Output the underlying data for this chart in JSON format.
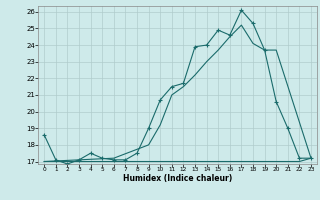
{
  "xlabel": "Humidex (Indice chaleur)",
  "bg_color": "#ceeaea",
  "grid_color": "#b0cccc",
  "line_color": "#1a6b6b",
  "xmin": 0,
  "xmax": 23,
  "ymin": 17,
  "ymax": 26,
  "line1_x": [
    0,
    1,
    2,
    3,
    4,
    5,
    6,
    7,
    8,
    9,
    10,
    11,
    12,
    13,
    14,
    15,
    16,
    17,
    18,
    19,
    20,
    21,
    22,
    23
  ],
  "line1_y": [
    18.6,
    17.1,
    16.85,
    17.1,
    17.5,
    17.2,
    17.1,
    17.1,
    17.5,
    19.0,
    20.7,
    21.5,
    21.7,
    23.9,
    24.0,
    24.9,
    24.6,
    26.1,
    25.3,
    23.7,
    20.6,
    19.0,
    17.2,
    17.2
  ],
  "line2_x": [
    0,
    1,
    2,
    3,
    4,
    5,
    6,
    7,
    8,
    9,
    10,
    11,
    12,
    13,
    14,
    15,
    16,
    17,
    18,
    19,
    20,
    21,
    22,
    23
  ],
  "line2_y": [
    17.0,
    17.0,
    17.0,
    17.0,
    17.0,
    17.0,
    17.0,
    17.0,
    17.0,
    17.0,
    17.0,
    17.0,
    17.0,
    17.0,
    17.0,
    17.0,
    17.0,
    17.0,
    17.0,
    17.0,
    17.0,
    17.0,
    17.0,
    17.2
  ],
  "line3_x": [
    0,
    3,
    6,
    9,
    10,
    11,
    12,
    13,
    14,
    15,
    16,
    17,
    18,
    19,
    20,
    23
  ],
  "line3_y": [
    17.0,
    17.1,
    17.2,
    18.0,
    19.2,
    21.0,
    21.5,
    22.2,
    23.0,
    23.7,
    24.5,
    25.2,
    24.1,
    23.7,
    23.7,
    17.2
  ]
}
